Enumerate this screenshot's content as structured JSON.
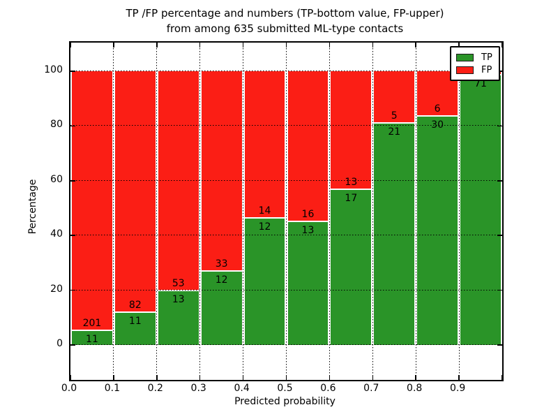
{
  "title": {
    "line1": "TP /FP percentage and numbers (TP-bottom value, FP-upper)",
    "line2": "from among 635 submitted ML-type contacts"
  },
  "axes": {
    "xlabel": "Predicted probability",
    "ylabel": "Percentage",
    "x_tick_labels": [
      "0.0",
      "0.1",
      "0.2",
      "0.3",
      "0.4",
      "0.5",
      "0.6",
      "0.7",
      "0.8",
      "0.9"
    ],
    "y_tick_labels": [
      "0",
      "20",
      "40",
      "60",
      "80",
      "100"
    ],
    "y_tick_values": [
      0,
      20,
      40,
      60,
      80,
      100
    ]
  },
  "legend": {
    "items": [
      {
        "label": "TP",
        "color": "#2a9428"
      },
      {
        "label": "FP",
        "color": "#fb1e15"
      }
    ]
  },
  "chart_data": {
    "type": "bar",
    "stacked": true,
    "title": "TP /FP percentage and numbers (TP-bottom value, FP-upper) from among 635 submitted ML-type contacts",
    "xlabel": "Predicted probability",
    "ylabel": "Percentage",
    "total_contacts_in_title": 635,
    "bin_edges": [
      0.0,
      0.1,
      0.2,
      0.3,
      0.4,
      0.5,
      0.6,
      0.7,
      0.8,
      0.9,
      1.0
    ],
    "categories": [
      "0.0-0.1",
      "0.1-0.2",
      "0.2-0.3",
      "0.3-0.4",
      "0.4-0.5",
      "0.5-0.6",
      "0.6-0.7",
      "0.7-0.8",
      "0.8-0.9",
      "0.9-1.0"
    ],
    "ylim_shown": [
      0,
      100
    ],
    "grid": "dotted",
    "legend_position": "upper right",
    "series": [
      {
        "name": "TP",
        "color": "#2a9428",
        "count_labels": [
          "11",
          "11",
          "13",
          "12",
          "12",
          "13",
          "17",
          "21",
          "30",
          "71"
        ],
        "percent": [
          5.2,
          11.8,
          19.7,
          26.7,
          46.2,
          44.8,
          56.7,
          80.8,
          83.3,
          98.6
        ]
      },
      {
        "name": "FP",
        "color": "#fb1e15",
        "count_labels": [
          "201",
          "82",
          "53",
          "33",
          "14",
          "16",
          "13",
          "5",
          "6",
          ""
        ],
        "percent": [
          94.8,
          88.2,
          80.3,
          73.3,
          53.8,
          55.2,
          43.3,
          19.2,
          16.7,
          1.4
        ]
      }
    ]
  }
}
